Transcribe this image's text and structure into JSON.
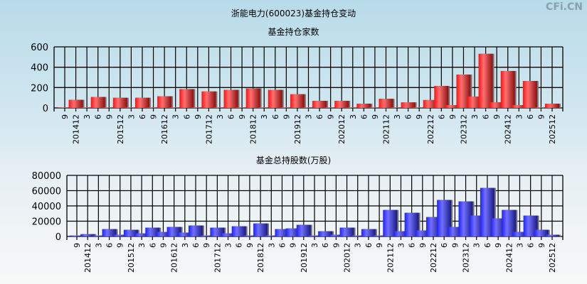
{
  "title": "浙能电力(600023)基金持仓变动",
  "watermark": "CFi.CN",
  "chart_data": [
    {
      "type": "bar",
      "title": "基金持仓家数",
      "color": "#e8242a",
      "ylim": [
        0,
        600
      ],
      "yticks": [
        "0",
        "200",
        "400",
        "600"
      ],
      "grid": true,
      "categories": [
        "9",
        "201412",
        "3",
        "6",
        "9",
        "201512",
        "3",
        "6",
        "9",
        "201612",
        "3",
        "6",
        "9",
        "201712",
        "3",
        "6",
        "9",
        "201812",
        "3",
        "6",
        "9",
        "201912",
        "3",
        "6",
        "9",
        "202012",
        "3",
        "6",
        "9",
        "202112",
        "3",
        "6",
        "9",
        "202212",
        "6",
        "9",
        "202312",
        "3",
        "6",
        "9",
        "202412",
        "3",
        "6",
        "9",
        "202512"
      ],
      "values": [
        5,
        80,
        5,
        108,
        5,
        100,
        5,
        100,
        5,
        115,
        5,
        185,
        5,
        162,
        5,
        178,
        5,
        192,
        5,
        178,
        5,
        135,
        5,
        70,
        5,
        70,
        5,
        42,
        5,
        90,
        5,
        55,
        5,
        78,
        216,
        28,
        328,
        112,
        532,
        56,
        363,
        28,
        265,
        5,
        42
      ]
    },
    {
      "type": "bar",
      "title": "基金总持股数(万股)",
      "color": "#3a3af0",
      "ylim": [
        0,
        80000
      ],
      "yticks": [
        "0",
        "20000",
        "40000",
        "60000",
        "80000"
      ],
      "grid": true,
      "categories": [
        "9",
        "201412",
        "3",
        "6",
        "9",
        "201512",
        "3",
        "6",
        "9",
        "201612",
        "3",
        "6",
        "9",
        "201712",
        "3",
        "6",
        "9",
        "201812",
        "3",
        "6",
        "9",
        "201912",
        "3",
        "6",
        "9",
        "202012",
        "3",
        "6",
        "9",
        "202112",
        "3",
        "6",
        "9",
        "202212",
        "6",
        "9",
        "202312",
        "3",
        "6",
        "9",
        "202412",
        "3",
        "6",
        "9",
        "202512"
      ],
      "values": [
        1200,
        3000,
        1200,
        9600,
        2200,
        8700,
        4000,
        11500,
        5900,
        12400,
        5000,
        14300,
        1200,
        11500,
        4000,
        13300,
        1200,
        17000,
        1200,
        9600,
        10500,
        15200,
        1200,
        6800,
        2200,
        11500,
        1200,
        9600,
        1200,
        34700,
        6800,
        31000,
        7800,
        25400,
        47800,
        12400,
        45900,
        27300,
        63600,
        23600,
        34700,
        5900,
        27300,
        8700,
        2200
      ]
    }
  ]
}
